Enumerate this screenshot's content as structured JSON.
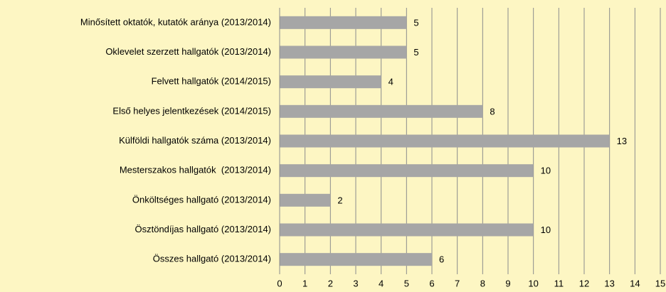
{
  "chart_data": {
    "type": "bar",
    "orientation": "horizontal",
    "categories": [
      "Minősített oktatók, kutatók aránya (2013/2014)",
      "Oklevelet szerzett hallgatók (2013/2014)",
      "Felvett hallgatók (2014/2015)",
      "Első helyes jelentkezések (2014/2015)",
      "Külföldi hallgatók száma (2013/2014)",
      "Mesterszakos hallgatók  (2013/2014)",
      "Önköltséges hallgató (2013/2014)",
      "Ösztöndíjas hallgató (2013/2014)",
      "Összes hallgató (2013/2014)"
    ],
    "values": [
      5,
      5,
      4,
      8,
      13,
      10,
      2,
      10,
      6
    ],
    "color": "#a6a6a6",
    "xlim": [
      0,
      15
    ],
    "xticks": [
      0,
      1,
      2,
      3,
      4,
      5,
      6,
      7,
      8,
      9,
      10,
      11,
      12,
      13,
      14,
      15
    ],
    "grid": true
  }
}
